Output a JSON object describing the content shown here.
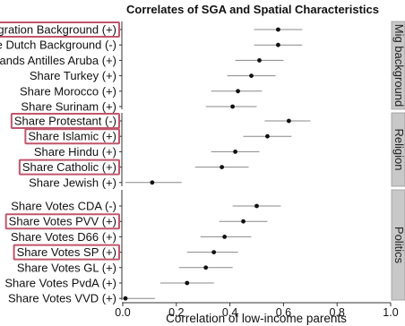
{
  "chart_data": {
    "type": "scatter",
    "title": "Correlates of SGA and Spatial Characteristics",
    "xlabel": "Correlation of low-income parents",
    "xlim": [
      0.0,
      1.0
    ],
    "xticks": [
      "0.0",
      "0.2",
      "0.4",
      "0.6",
      "0.8",
      "1.0"
    ],
    "grid": false,
    "colors": {
      "point": "#111111",
      "ci": "#888888",
      "highlight": "#c0566b",
      "strip": "#c8c8c8",
      "strip_border": "#999999"
    },
    "panels": [
      {
        "name": "Mig background",
        "rows": [
          {
            "label": "Share Migration Background (+)",
            "estimate": 0.58,
            "ci": [
              0.49,
              0.67
            ],
            "highlighted": true
          },
          {
            "label": "Share Dutch Background (-)",
            "estimate": 0.58,
            "ci": [
              0.49,
              0.67
            ],
            "highlighted": false
          },
          {
            "label": "Share Netherlands Antilles Aruba (+)",
            "estimate": 0.51,
            "ci": [
              0.42,
              0.6
            ],
            "highlighted": false
          },
          {
            "label": "Share Turkey (+)",
            "estimate": 0.48,
            "ci": [
              0.39,
              0.57
            ],
            "highlighted": false
          },
          {
            "label": "Share Morocco (+)",
            "estimate": 0.43,
            "ci": [
              0.33,
              0.52
            ],
            "highlighted": false
          },
          {
            "label": "Share Surinam (+)",
            "estimate": 0.41,
            "ci": [
              0.31,
              0.5
            ],
            "highlighted": false
          }
        ]
      },
      {
        "name": "Religion",
        "rows": [
          {
            "label": "Share Protestant (-)",
            "estimate": 0.62,
            "ci": [
              0.53,
              0.7
            ],
            "highlighted": true
          },
          {
            "label": "Share Islamic (+)",
            "estimate": 0.54,
            "ci": [
              0.45,
              0.63
            ],
            "highlighted": true
          },
          {
            "label": "Share Hindu (+)",
            "estimate": 0.42,
            "ci": [
              0.33,
              0.51
            ],
            "highlighted": false
          },
          {
            "label": "Share Catholic (+)",
            "estimate": 0.37,
            "ci": [
              0.27,
              0.47
            ],
            "highlighted": true
          },
          {
            "label": "Share Jewish (+)",
            "estimate": 0.11,
            "ci": [
              0.01,
              0.22
            ],
            "highlighted": false
          }
        ]
      },
      {
        "name": "Politics",
        "rows": [
          {
            "label": "Share Votes CDA (-)",
            "estimate": 0.5,
            "ci": [
              0.41,
              0.59
            ],
            "highlighted": false
          },
          {
            "label": "Share Votes PVV (+)",
            "estimate": 0.45,
            "ci": [
              0.36,
              0.54
            ],
            "highlighted": true
          },
          {
            "label": "Share Votes D66 (+)",
            "estimate": 0.38,
            "ci": [
              0.29,
              0.48
            ],
            "highlighted": false
          },
          {
            "label": "Share Votes SP (+)",
            "estimate": 0.34,
            "ci": [
              0.24,
              0.43
            ],
            "highlighted": true
          },
          {
            "label": "Share Votes GL (+)",
            "estimate": 0.31,
            "ci": [
              0.21,
              0.41
            ],
            "highlighted": false
          },
          {
            "label": "Share Votes PvdA (+)",
            "estimate": 0.24,
            "ci": [
              0.14,
              0.34
            ],
            "highlighted": false
          },
          {
            "label": "Share Votes VVD (+)",
            "estimate": 0.01,
            "ci": [
              -0.09,
              0.12
            ],
            "highlighted": false
          }
        ]
      }
    ]
  }
}
